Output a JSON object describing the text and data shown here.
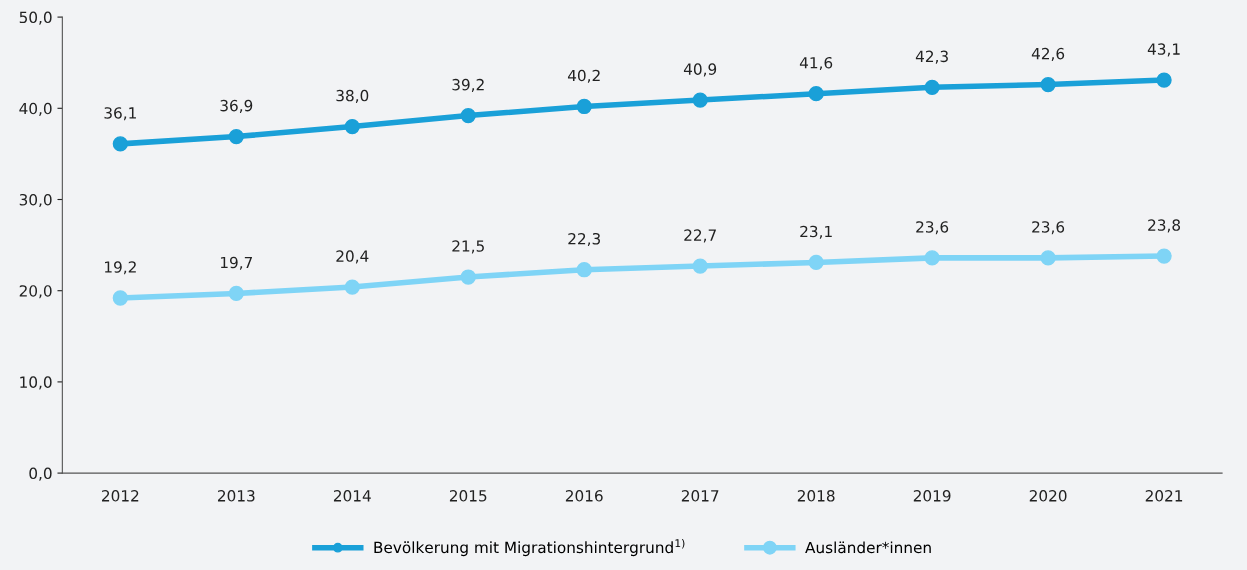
{
  "chart_data": {
    "type": "line",
    "categories": [
      "2012",
      "2013",
      "2014",
      "2015",
      "2016",
      "2017",
      "2018",
      "2019",
      "2020",
      "2021"
    ],
    "series": [
      {
        "name": "Bevölkerung mit Migrationshintergrund$^{1)}$",
        "color": "#1aa0d8",
        "values": [
          36.1,
          36.9,
          38.0,
          39.2,
          40.2,
          40.9,
          41.6,
          42.3,
          42.6,
          43.1
        ],
        "value_labels": [
          "36,1",
          "36,9",
          "38,0",
          "39,2",
          "40,2",
          "40,9",
          "41,6",
          "42,3",
          "42,6",
          "43,1"
        ]
      },
      {
        "name": "Ausländer*innen",
        "color": "#7fd4f6",
        "values": [
          19.2,
          19.7,
          20.4,
          21.5,
          22.3,
          22.7,
          23.1,
          23.6,
          23.6,
          23.8
        ],
        "value_labels": [
          "19,2",
          "19,7",
          "20,4",
          "21,5",
          "22,3",
          "22,7",
          "23,1",
          "23,6",
          "23,6",
          "23,8"
        ]
      }
    ],
    "ylim": [
      0,
      50
    ],
    "yticks": [
      {
        "value": 0,
        "label": "0,0"
      },
      {
        "value": 10,
        "label": "10,0"
      },
      {
        "value": 20,
        "label": "20,0"
      },
      {
        "value": 30,
        "label": "30,0"
      },
      {
        "value": 40,
        "label": "40,0"
      },
      {
        "value": 50,
        "label": "50,0"
      }
    ],
    "grid": false,
    "legend": "bottom",
    "marker": "circle",
    "line_style": "solid"
  }
}
